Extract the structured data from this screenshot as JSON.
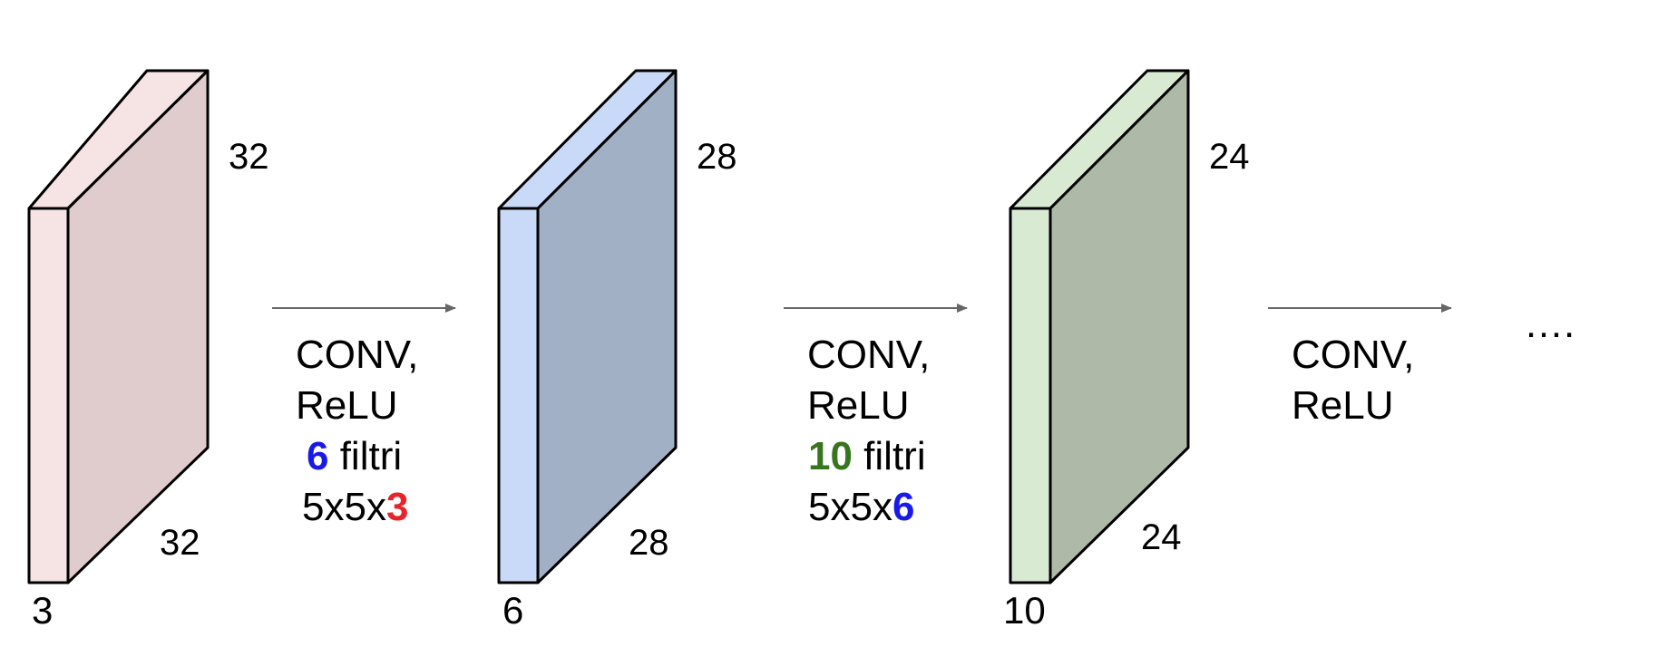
{
  "volumes": [
    {
      "height": "32",
      "width": "32",
      "depth": "3",
      "depth_color": "#e8232a",
      "front_color": "#f6e3e3",
      "side_color": "#e0cccc",
      "top_color": "#f6e3e3"
    },
    {
      "height": "28",
      "width": "28",
      "depth": "6",
      "depth_color": "#1a1ae8",
      "front_color": "#c9daf8",
      "side_color": "#a2b0c6",
      "top_color": "#c9daf8"
    },
    {
      "height": "24",
      "width": "24",
      "depth": "10",
      "depth_color": "#38761d",
      "front_color": "#d9ead3",
      "side_color": "#aeb9a8",
      "top_color": "#d9ead3"
    }
  ],
  "layers": [
    {
      "line1": "CONV,",
      "line2": "ReLU",
      "filters_count": "6",
      "filters_count_color": "#1a1ae8",
      "filters_word": " filtri",
      "kernel_prefix": "5x5x",
      "kernel_depth": "3",
      "kernel_depth_color": "#e8232a"
    },
    {
      "line1": "CONV,",
      "line2": "ReLU",
      "filters_count": "10",
      "filters_count_color": "#38761d",
      "filters_word": " filtri",
      "kernel_prefix": "5x5x",
      "kernel_depth": "6",
      "kernel_depth_color": "#1a1ae8"
    },
    {
      "line1": "CONV,",
      "line2": "ReLU"
    }
  ],
  "ellipsis": "….",
  "arrow_color": "#666666"
}
